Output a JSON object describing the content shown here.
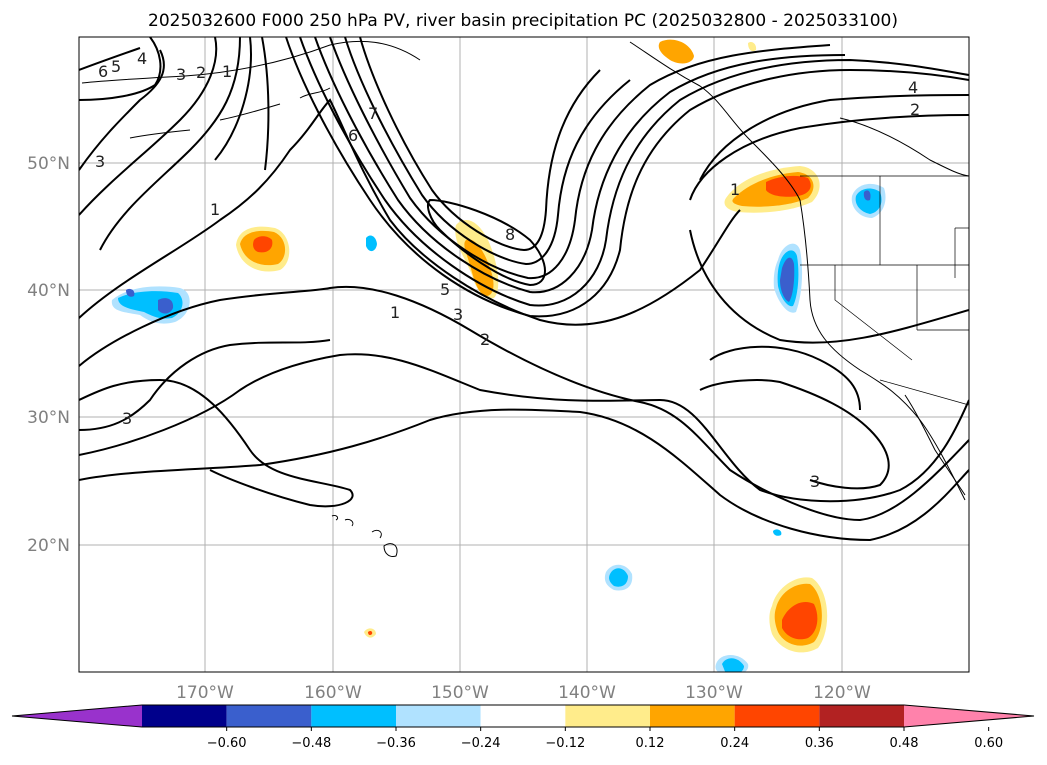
{
  "title": "2025032600 F000 250 hPa PV, river basin precipitation PC (2025032800 - 2025033100)",
  "lat_labels": [
    "50°N",
    "40°N",
    "30°N",
    "20°N"
  ],
  "lon_labels": [
    "170°W",
    "160°W",
    "150°W",
    "140°W",
    "130°W",
    "120°W"
  ],
  "colorbar": {
    "ticks": [
      "−0.60",
      "−0.48",
      "−0.36",
      "−0.24",
      "−0.12",
      "0.12",
      "0.24",
      "0.36",
      "0.48",
      "0.60"
    ],
    "colors": [
      "#9932cc",
      "#00008b",
      "#3a5fcd",
      "#00bfff",
      "#b0e2ff",
      "#ffffff",
      "#ffec8b",
      "#ffa500",
      "#ff4500",
      "#b22222",
      "#ff82ab"
    ]
  },
  "contour_labels": [
    "6",
    "5",
    "4",
    "3",
    "2",
    "1",
    "3",
    "7",
    "6",
    "1",
    "8",
    "5",
    "3",
    "1",
    "2",
    "4",
    "2",
    "1",
    "3",
    "3"
  ],
  "colors": {
    "contour": "#000000",
    "grid": "#b0b0b0",
    "coast": "#000000"
  }
}
